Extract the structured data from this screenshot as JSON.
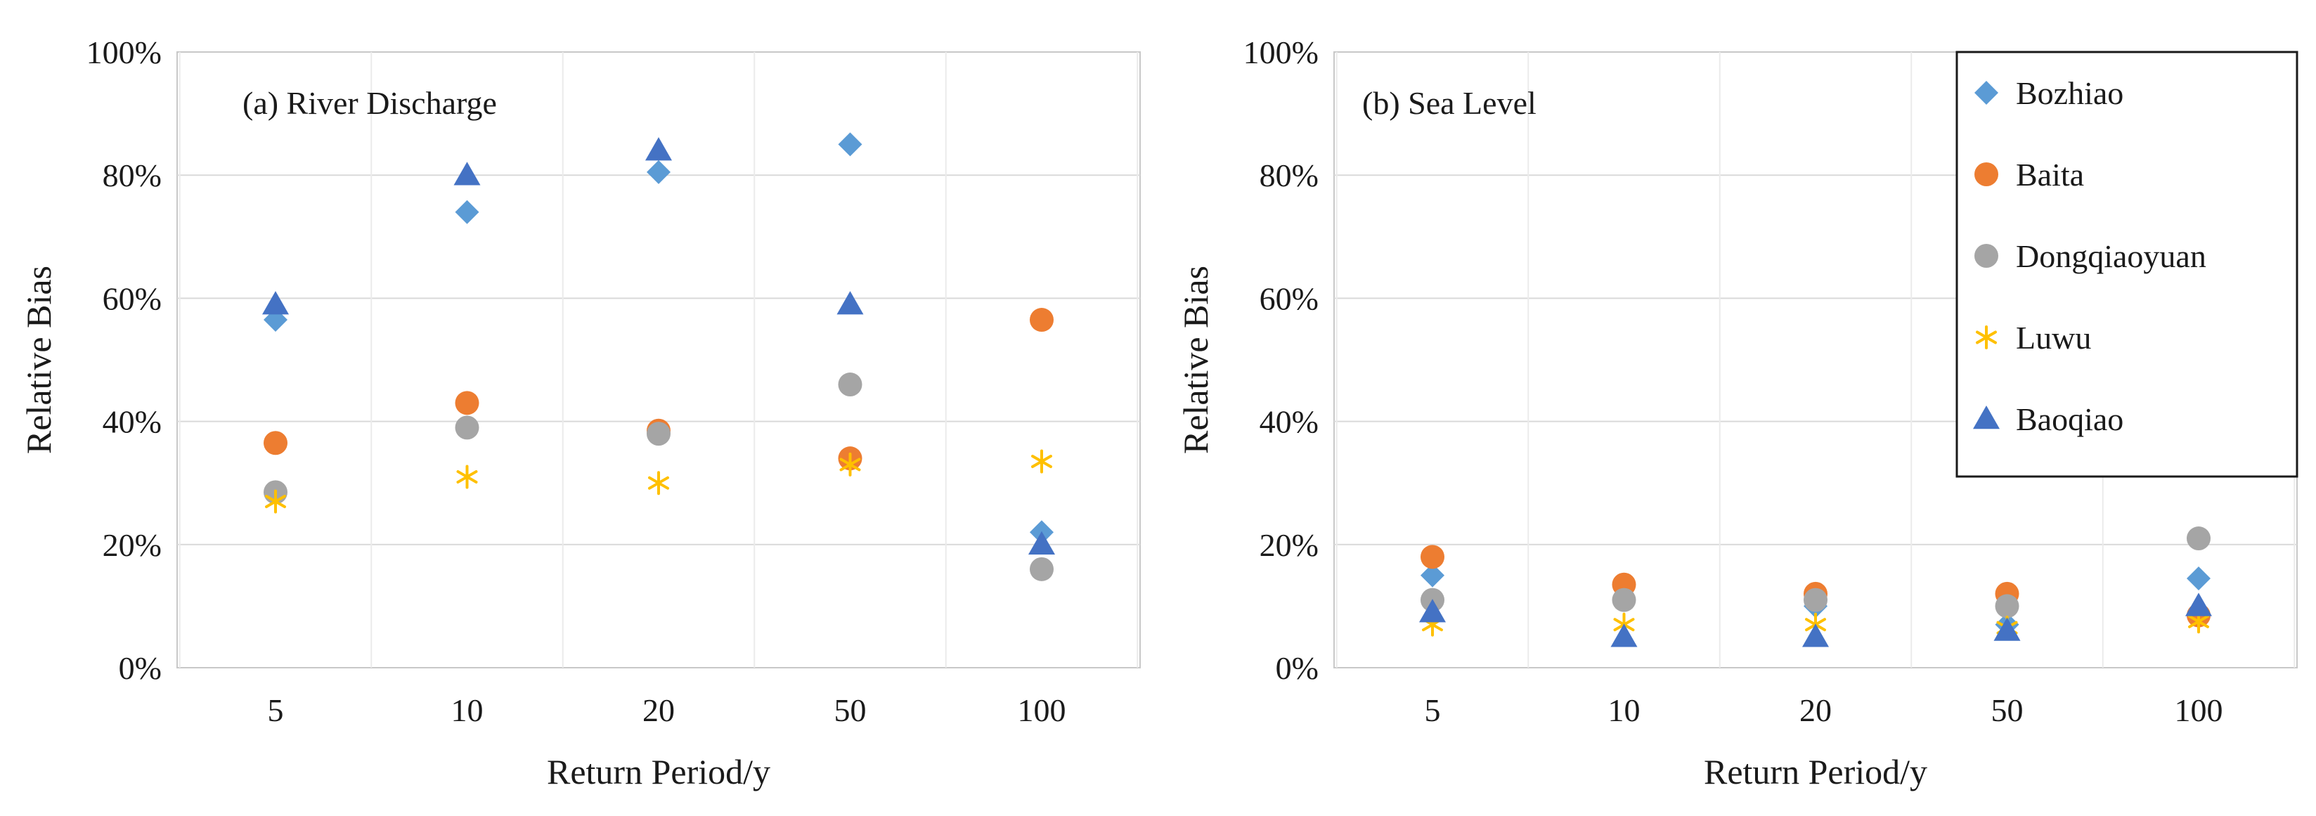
{
  "series_styles": {
    "Bozhiao": {
      "marker": "diamond",
      "color": "#5B9BD5"
    },
    "Baita": {
      "marker": "circle",
      "color": "#ED7D31"
    },
    "Dongqiaoyuan": {
      "marker": "circle",
      "color": "#A5A5A5"
    },
    "Luwu": {
      "marker": "asterisk",
      "color": "#FFC000"
    },
    "Baoqiao": {
      "marker": "triangle",
      "color": "#4472C4"
    }
  },
  "legend": {
    "entries": [
      "Bozhiao",
      "Baita",
      "Dongqiaoyuan",
      "Luwu",
      "Baoqiao"
    ],
    "placement": "top-right of panel (b)"
  },
  "chart_data": [
    {
      "type": "scatter",
      "title": "(a) River Discharge",
      "xlabel": "Return Period/y",
      "ylabel": "Relative Bias",
      "categories": [
        "5",
        "10",
        "20",
        "50",
        "100"
      ],
      "ylim": [
        0,
        100
      ],
      "yticks": [
        "0%",
        "20%",
        "40%",
        "60%",
        "80%",
        "100%"
      ],
      "grid": true,
      "series": [
        {
          "name": "Bozhiao",
          "values": [
            56.5,
            74,
            80.5,
            85,
            22
          ]
        },
        {
          "name": "Baita",
          "values": [
            36.5,
            43,
            38.5,
            34,
            56.5
          ]
        },
        {
          "name": "Dongqiaoyuan",
          "values": [
            28.5,
            39,
            38,
            46,
            16
          ]
        },
        {
          "name": "Luwu",
          "values": [
            27,
            31,
            30,
            33,
            33.5
          ]
        },
        {
          "name": "Baoqiao",
          "values": [
            59,
            80,
            84,
            59,
            20
          ]
        }
      ]
    },
    {
      "type": "scatter",
      "title": "(b) Sea Level",
      "xlabel": "Return Period/y",
      "ylabel": "Relative Bias",
      "categories": [
        "5",
        "10",
        "20",
        "50",
        "100"
      ],
      "ylim": [
        0,
        100
      ],
      "yticks": [
        "0%",
        "20%",
        "40%",
        "60%",
        "80%",
        "100%"
      ],
      "grid": true,
      "series": [
        {
          "name": "Bozhiao",
          "values": [
            15,
            11,
            10,
            7,
            14.5
          ]
        },
        {
          "name": "Baita",
          "values": [
            18,
            13.5,
            12,
            12,
            8.5
          ]
        },
        {
          "name": "Dongqiaoyuan",
          "values": [
            11,
            11,
            11,
            10,
            21
          ]
        },
        {
          "name": "Luwu",
          "values": [
            7,
            7,
            7,
            6.5,
            7.5
          ]
        },
        {
          "name": "Baoqiao",
          "values": [
            9,
            5,
            5,
            6,
            10
          ]
        }
      ]
    }
  ]
}
